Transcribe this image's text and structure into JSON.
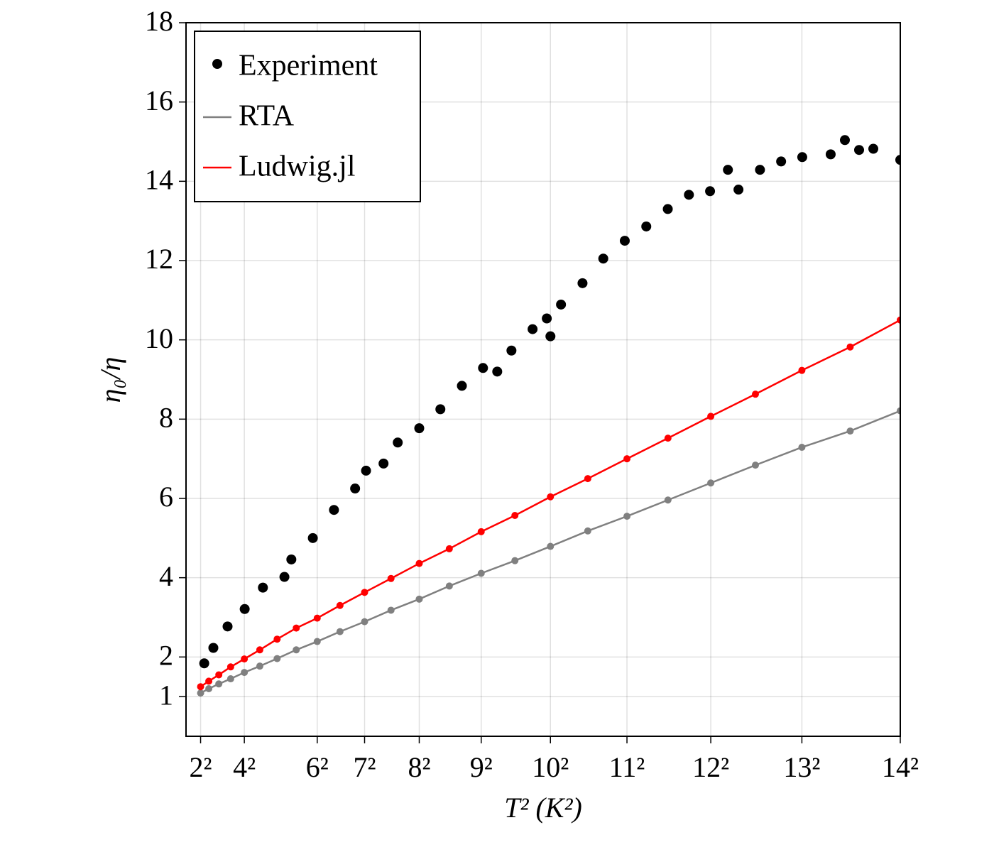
{
  "chart_data": {
    "type": "scatter",
    "xlabel": "T² (K²)",
    "ylabel": "η₀/η",
    "xlim": [
      0,
      196
    ],
    "ylim": [
      0,
      18
    ],
    "xticks": [
      {
        "value": 4,
        "label": "2²"
      },
      {
        "value": 16,
        "label": "4²"
      },
      {
        "value": 36,
        "label": "6²"
      },
      {
        "value": 49,
        "label": "7²"
      },
      {
        "value": 64,
        "label": "8²"
      },
      {
        "value": 81,
        "label": "9²"
      },
      {
        "value": 100,
        "label": "10²"
      },
      {
        "value": 121,
        "label": "11²"
      },
      {
        "value": 144,
        "label": "12²"
      },
      {
        "value": 169,
        "label": "13²"
      },
      {
        "value": 196,
        "label": "14²"
      }
    ],
    "yticks": [
      1,
      2,
      4,
      6,
      8,
      10,
      12,
      14,
      16,
      18
    ],
    "grid": true,
    "legend": "top-left",
    "series": [
      {
        "name": "Experiment",
        "color": "#000000",
        "mode": "markers",
        "x": [
          5.0,
          7.5,
          11.4,
          16.1,
          21.1,
          27.0,
          28.9,
          34.8,
          40.6,
          46.4,
          49.4,
          54.2,
          58.1,
          64.0,
          69.8,
          75.7,
          81.5,
          85.4,
          89.3,
          95.1,
          99.0,
          100.0,
          102.9,
          108.8,
          114.5,
          120.4,
          126.3,
          132.2,
          138.0,
          143.8,
          148.7,
          151.6,
          157.5,
          163.3,
          169.1,
          176.9,
          180.8,
          184.7,
          188.6,
          196.0
        ],
        "values": [
          1.84,
          2.23,
          2.77,
          3.21,
          3.75,
          4.02,
          4.46,
          5.0,
          5.71,
          6.25,
          6.7,
          6.88,
          7.41,
          7.77,
          8.25,
          8.84,
          9.29,
          9.2,
          9.73,
          10.27,
          10.54,
          10.09,
          10.89,
          11.43,
          12.05,
          12.5,
          12.86,
          13.3,
          13.66,
          13.75,
          14.29,
          13.79,
          14.29,
          14.5,
          14.61,
          14.68,
          15.04,
          14.79,
          14.82,
          14.54
        ]
      },
      {
        "name": "RTA",
        "color": "#808080",
        "mode": "lines+markers",
        "x": [
          4,
          6.25,
          9,
          12.25,
          16,
          20.25,
          25,
          30.25,
          36,
          42.25,
          49,
          56.25,
          64,
          72.25,
          81,
          90.25,
          100,
          110.25,
          121,
          132.25,
          144,
          156.25,
          169,
          182.25,
          196
        ],
        "values": [
          1.09,
          1.2,
          1.32,
          1.45,
          1.61,
          1.77,
          1.96,
          2.18,
          2.39,
          2.64,
          2.89,
          3.18,
          3.46,
          3.79,
          4.11,
          4.43,
          4.79,
          5.18,
          5.55,
          5.96,
          6.39,
          6.84,
          7.29,
          7.7,
          8.21
        ]
      },
      {
        "name": "Ludwig.jl",
        "color": "#ff0000",
        "mode": "lines+markers",
        "x": [
          4,
          6.25,
          9,
          12.25,
          16,
          20.25,
          25,
          30.25,
          36,
          42.25,
          49,
          56.25,
          64,
          72.25,
          81,
          90.25,
          100,
          110.25,
          121,
          132.25,
          144,
          156.25,
          169,
          182.25,
          196
        ],
        "values": [
          1.25,
          1.39,
          1.55,
          1.75,
          1.95,
          2.18,
          2.45,
          2.73,
          2.98,
          3.3,
          3.63,
          3.98,
          4.36,
          4.73,
          5.16,
          5.57,
          6.04,
          6.5,
          7.0,
          7.52,
          8.07,
          8.63,
          9.23,
          9.82,
          10.5
        ]
      }
    ]
  }
}
